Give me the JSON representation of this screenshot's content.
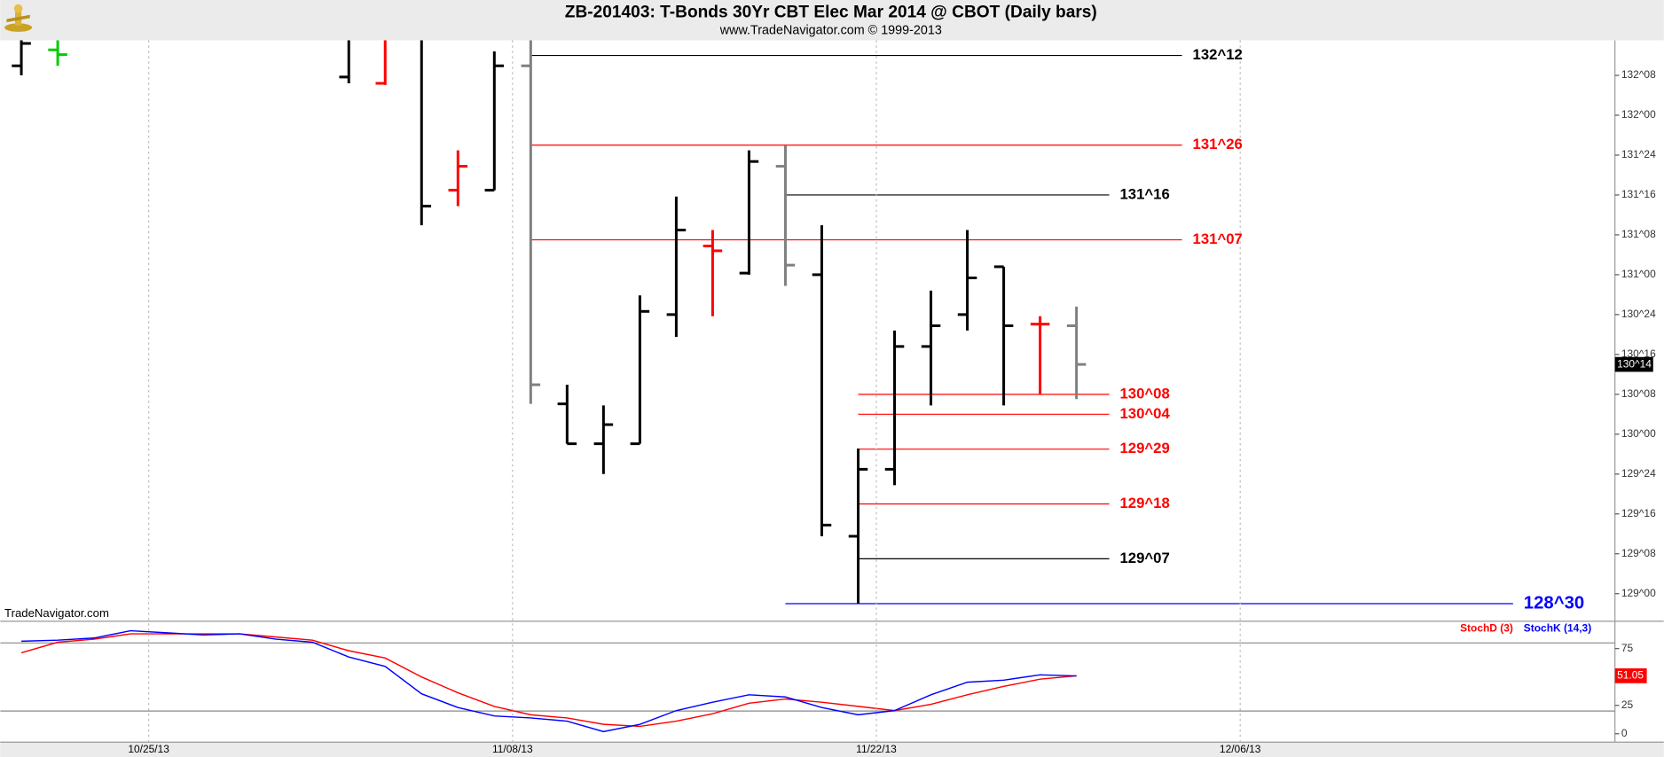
{
  "chart_data": [
    {
      "type": "ohlc",
      "title": "ZB-201403:  T-Bonds 30Yr CBT Elec Mar 2014 @ CBOT  (Daily bars)",
      "subtitle": "www.TradeNavigator.com © 1999-2013",
      "watermark": "TradeNavigator.com",
      "x": [
        -14,
        -13,
        -5,
        -4,
        -3,
        -2,
        -1,
        0,
        1,
        2,
        3,
        4,
        5,
        6,
        7,
        8,
        9,
        10,
        11,
        12,
        13,
        14,
        15
      ],
      "open": [
        132.31,
        132.41,
        132.24,
        132.2,
        132.5,
        131.53,
        131.53,
        132.31,
        130.19,
        129.94,
        129.94,
        130.75,
        131.18,
        131.01,
        131.68,
        131.0,
        129.36,
        129.78,
        130.55,
        130.75,
        131.05,
        130.69,
        130.68
      ],
      "high": [
        132.6,
        132.6,
        132.6,
        132.6,
        132.6,
        131.78,
        132.4,
        132.6,
        130.31,
        130.18,
        130.87,
        131.49,
        131.28,
        131.78,
        131.81,
        131.31,
        129.91,
        130.65,
        130.9,
        131.28,
        131.05,
        130.74,
        130.8
      ],
      "low": [
        132.25,
        132.31,
        132.2,
        132.19,
        131.31,
        131.43,
        131.53,
        130.19,
        129.94,
        129.75,
        129.94,
        130.61,
        130.74,
        131.0,
        130.93,
        129.36,
        128.94,
        129.68,
        130.18,
        130.65,
        130.18,
        130.25,
        130.22
      ],
      "close": [
        132.45,
        132.38,
        132.5,
        132.55,
        131.43,
        131.68,
        132.31,
        130.31,
        129.94,
        130.06,
        130.77,
        131.28,
        131.15,
        131.71,
        131.06,
        129.43,
        129.78,
        130.55,
        130.68,
        130.98,
        130.68,
        130.69,
        130.4375
      ],
      "colors": [
        "#000000",
        "#00cc00",
        "#000000",
        "#ff0000",
        "#000000",
        "#ff0000",
        "#000000",
        "#808080",
        "#000000",
        "#000000",
        "#000000",
        "#000000",
        "#ff0000",
        "#000000",
        "#808080",
        "#000000",
        "#000000",
        "#000000",
        "#000000",
        "#000000",
        "#000000",
        "#ff0000",
        "#808080"
      ],
      "xlim": [
        -14.58,
        29.8
      ],
      "ylim": [
        128.84,
        132.47
      ],
      "xticks": [
        {
          "value": -10.5,
          "label": "10/25/13"
        },
        {
          "value": -0.5,
          "label": "11/08/13"
        },
        {
          "value": 9.5,
          "label": "11/22/13"
        },
        {
          "value": 19.5,
          "label": "12/06/13"
        }
      ],
      "yticks": [
        {
          "value": 129,
          "label": "129^00"
        },
        {
          "value": 129.25,
          "label": "129^08"
        },
        {
          "value": 129.5,
          "label": "129^16"
        },
        {
          "value": 129.75,
          "label": "129^24"
        },
        {
          "value": 130,
          "label": "130^00"
        },
        {
          "value": 130.25,
          "label": "130^08"
        },
        {
          "value": 130.5,
          "label": "130^16"
        },
        {
          "value": 130.75,
          "label": "130^24"
        },
        {
          "value": 131,
          "label": "131^00"
        },
        {
          "value": 131.25,
          "label": "131^08"
        },
        {
          "value": 131.5,
          "label": "131^16"
        },
        {
          "value": 131.75,
          "label": "131^24"
        },
        {
          "value": 132,
          "label": "132^00"
        },
        {
          "value": 132.25,
          "label": "132^08"
        }
      ],
      "grid": true,
      "levels": [
        {
          "value": 132.375,
          "label": "132^12",
          "color": "#000000",
          "x_from": 0,
          "x_to": 17.9
        },
        {
          "value": 131.8125,
          "label": "131^26",
          "color": "#ff0000",
          "x_from": 0,
          "x_to": 17.9
        },
        {
          "value": 131.5,
          "label": "131^16",
          "color": "#000000",
          "x_from": 7,
          "x_to": 15.9
        },
        {
          "value": 131.21875,
          "label": "131^07",
          "color": "#ff0000",
          "x_from": 0,
          "x_to": 17.9
        },
        {
          "value": 130.25,
          "label": "130^08",
          "color": "#ff0000",
          "x_from": 9,
          "x_to": 15.9
        },
        {
          "value": 130.125,
          "label": "130^04",
          "color": "#ff0000",
          "x_from": 9,
          "x_to": 15.9
        },
        {
          "value": 129.90625,
          "label": "129^29",
          "color": "#ff0000",
          "x_from": 9,
          "x_to": 15.9
        },
        {
          "value": 129.5625,
          "label": "129^18",
          "color": "#ff0000",
          "x_from": 9,
          "x_to": 15.9
        },
        {
          "value": 129.21875,
          "label": "129^07",
          "color": "#000000",
          "x_from": 9,
          "x_to": 15.9
        },
        {
          "value": 128.9375,
          "label": "128^30",
          "color": "#0000ff",
          "x_from": 7,
          "x_to": 27
        }
      ],
      "last_price": {
        "value": 130.4375,
        "label": "130^14"
      }
    },
    {
      "type": "line",
      "x": [
        -14,
        -13,
        -12,
        -11,
        -10,
        -9,
        -8,
        -7,
        -6,
        -5,
        -4,
        -3,
        -2,
        -1,
        0,
        1,
        2,
        3,
        4,
        5,
        6,
        7,
        8,
        9,
        10,
        11,
        12,
        13,
        14,
        15
      ],
      "series": [
        {
          "name": "StochD (3)",
          "color": "#ff0000",
          "values": [
            71.3,
            80.6,
            83.3,
            88.0,
            88.0,
            88.0,
            88.0,
            85.2,
            82.4,
            73.1,
            66.7,
            50.0,
            36.1,
            24.1,
            16.7,
            13.9,
            8.3,
            6.5,
            11.1,
            17.6,
            26.9,
            30.6,
            27.8,
            24.1,
            20.4,
            25.9,
            34.3,
            41.7,
            48.1,
            51.05
          ]
        },
        {
          "name": "StochK (14,3)",
          "color": "#0000ff",
          "values": [
            81.5,
            82.4,
            84.3,
            90.7,
            88.9,
            87.0,
            88.0,
            83.3,
            80.6,
            67.6,
            59.3,
            35.2,
            23.1,
            15.7,
            13.9,
            11.1,
            1.9,
            8.3,
            20.4,
            27.8,
            34.3,
            32.4,
            23.1,
            16.7,
            20.4,
            34.3,
            45.4,
            47.2,
            51.9,
            50.9
          ]
        }
      ],
      "xlim": [
        -14.58,
        29.8
      ],
      "ylim": [
        -7.4,
        98.1
      ],
      "yticks": [
        0,
        25,
        75
      ],
      "reference_lines": [
        20,
        80
      ],
      "last_value": 51.05
    }
  ]
}
